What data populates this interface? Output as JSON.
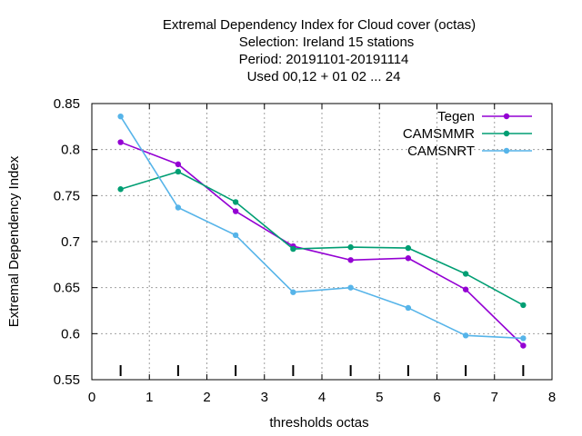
{
  "chart_data": {
    "type": "line",
    "title_lines": [
      "Extremal Dependency Index  for Cloud cover (octas)",
      "Selection: Ireland     15 stations",
      "Period: 20191101-20191114",
      "Used  00,12  + 01 02 ... 24"
    ],
    "xlabel": "thresholds octas",
    "ylabel": "Extremal Dependency Index",
    "xlim": [
      0,
      8
    ],
    "ylim": [
      0.55,
      0.85
    ],
    "xticks": [
      "0",
      "1",
      "2",
      "3",
      "4",
      "5",
      "6",
      "7",
      "8"
    ],
    "yticks": [
      "0.55",
      "0.6",
      "0.65",
      "0.7",
      "0.75",
      "0.8",
      "0.85"
    ],
    "grid": true,
    "legend_position": "top-right",
    "x": [
      0.5,
      1.5,
      2.5,
      3.5,
      4.5,
      5.5,
      6.5,
      7.5
    ],
    "series": [
      {
        "name": "Tegen",
        "color": "#9400d3",
        "values": [
          0.808,
          0.784,
          0.733,
          0.695,
          0.68,
          0.682,
          0.648,
          0.587
        ]
      },
      {
        "name": "CAMSMMR",
        "color": "#009e73",
        "values": [
          0.757,
          0.776,
          0.743,
          0.692,
          0.694,
          0.693,
          0.665,
          0.631
        ]
      },
      {
        "name": "CAMSNRT",
        "color": "#56b4e9",
        "values": [
          0.836,
          0.737,
          0.707,
          0.645,
          0.65,
          0.628,
          0.598,
          0.595
        ]
      }
    ]
  }
}
